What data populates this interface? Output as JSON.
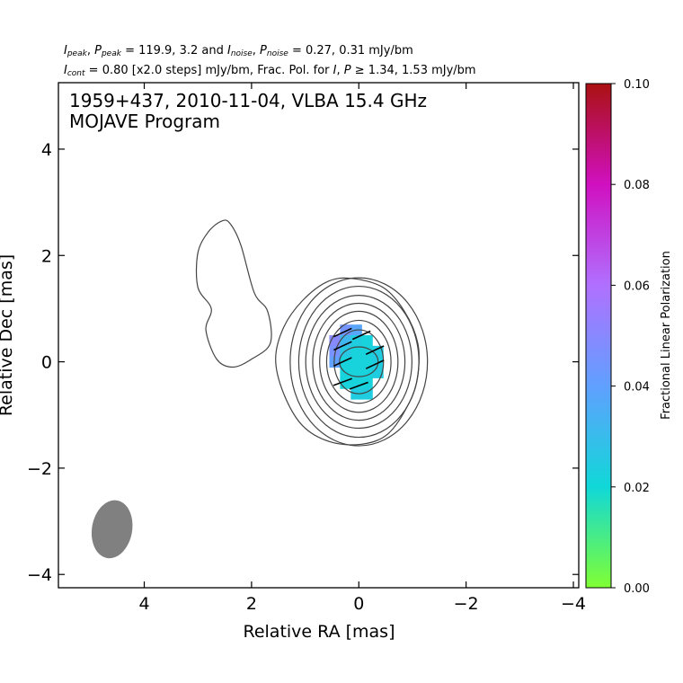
{
  "header": {
    "line1": {
      "i_sym": "I",
      "i_sub": "peak",
      "p_sym": "P",
      "p_sub": "peak",
      "peak_vals": "= 119.9, 3.2 and",
      "in_sym": "I",
      "in_sub": "noise",
      "pn_sym": "P",
      "pn_sub": "noise",
      "noise_vals": "= 0.27, 0.31 mJy/bm"
    },
    "line2": {
      "ic_sym": "I",
      "ic_sub": "cont",
      "cont_text": "= 0.80 [x2.0 steps] mJy/bm, Frac. Pol. for",
      "i_sym": "I",
      "sep": ",",
      "p_sym": "P",
      "thresh_text": "≥ 1.34, 1.53 mJy/bm"
    }
  },
  "plot": {
    "source_line": "1959+437, 2010-11-04, VLBA 15.4 GHz",
    "program_line": "MOJAVE Program"
  },
  "chart_data": {
    "type": "contour",
    "xlabel": "Relative RA [mas]",
    "ylabel": "Relative Dec [mas]",
    "xlim": [
      5.6,
      -4.1
    ],
    "ylim": [
      -4.25,
      5.25
    ],
    "x_ticks": [
      4,
      2,
      0,
      -2,
      -4
    ],
    "x_tick_labels": [
      "4",
      "2",
      "0",
      "−2",
      "−4"
    ],
    "y_ticks": [
      -4,
      -2,
      0,
      2,
      4
    ],
    "y_tick_labels": [
      "−4",
      "−2",
      "0",
      "2",
      "4"
    ],
    "core_contours": [
      {
        "rx": 0.36,
        "ry": 0.28
      },
      {
        "rx": 0.46,
        "ry": 0.6
      },
      {
        "rx": 0.6,
        "ry": 0.78
      },
      {
        "rx": 0.73,
        "ry": 0.95
      },
      {
        "rx": 0.86,
        "ry": 1.1
      },
      {
        "rx": 0.99,
        "ry": 1.25
      },
      {
        "rx": 1.12,
        "ry": 1.42
      },
      {
        "rx": 1.28,
        "ry": 1.58
      }
    ],
    "core_outer_contour": [
      [
        0.15,
        1.57
      ],
      [
        -0.45,
        1.4
      ],
      [
        -0.85,
        0.95
      ],
      [
        -1.1,
        0.35
      ],
      [
        -1.1,
        -0.25
      ],
      [
        -0.95,
        -0.75
      ],
      [
        -0.55,
        -1.35
      ],
      [
        -0.05,
        -1.55
      ],
      [
        0.55,
        -1.5
      ],
      [
        1.05,
        -1.2
      ],
      [
        1.4,
        -0.6
      ],
      [
        1.55,
        0.05
      ],
      [
        1.4,
        0.65
      ],
      [
        1.05,
        1.15
      ],
      [
        0.6,
        1.5
      ]
    ],
    "jet_contour": [
      [
        2.4,
        2.6
      ],
      [
        2.2,
        2.2
      ],
      [
        1.95,
        1.3
      ],
      [
        1.7,
        0.95
      ],
      [
        1.65,
        0.35
      ],
      [
        2.0,
        0.05
      ],
      [
        2.35,
        -0.1
      ],
      [
        2.65,
        0.05
      ],
      [
        2.85,
        0.6
      ],
      [
        2.75,
        1.0
      ],
      [
        3.0,
        1.4
      ],
      [
        3.0,
        2.05
      ],
      [
        2.8,
        2.45
      ],
      [
        2.55,
        2.65
      ]
    ],
    "pol_pixels": [
      {
        "x": 0.25,
        "y": 0.6,
        "frac": 0.045
      },
      {
        "x": 0.05,
        "y": 0.6,
        "frac": 0.038
      },
      {
        "x": 0.45,
        "y": 0.4,
        "frac": 0.05
      },
      {
        "x": 0.25,
        "y": 0.4,
        "frac": 0.032
      },
      {
        "x": 0.05,
        "y": 0.4,
        "frac": 0.024
      },
      {
        "x": -0.15,
        "y": 0.4,
        "frac": 0.022
      },
      {
        "x": 0.45,
        "y": 0.2,
        "frac": 0.046
      },
      {
        "x": 0.25,
        "y": 0.2,
        "frac": 0.026
      },
      {
        "x": 0.05,
        "y": 0.2,
        "frac": 0.022
      },
      {
        "x": -0.15,
        "y": 0.2,
        "frac": 0.022
      },
      {
        "x": -0.35,
        "y": 0.2,
        "frac": 0.024
      },
      {
        "x": 0.45,
        "y": 0.0,
        "frac": 0.04
      },
      {
        "x": 0.25,
        "y": 0.0,
        "frac": 0.022
      },
      {
        "x": 0.05,
        "y": 0.0,
        "frac": 0.022
      },
      {
        "x": -0.15,
        "y": 0.0,
        "frac": 0.022
      },
      {
        "x": -0.35,
        "y": 0.0,
        "frac": 0.024
      },
      {
        "x": 0.25,
        "y": -0.2,
        "frac": 0.022
      },
      {
        "x": 0.05,
        "y": -0.2,
        "frac": 0.022
      },
      {
        "x": -0.15,
        "y": -0.2,
        "frac": 0.022
      },
      {
        "x": -0.35,
        "y": -0.2,
        "frac": 0.024
      },
      {
        "x": 0.25,
        "y": -0.4,
        "frac": 0.022
      },
      {
        "x": 0.05,
        "y": -0.4,
        "frac": 0.022
      },
      {
        "x": -0.15,
        "y": -0.4,
        "frac": 0.022
      },
      {
        "x": 0.05,
        "y": -0.6,
        "frac": 0.024
      },
      {
        "x": -0.15,
        "y": -0.6,
        "frac": 0.024
      }
    ],
    "evpa_ticks": [
      {
        "x": 0.3,
        "y": 0.55,
        "angle": -25
      },
      {
        "x": -0.05,
        "y": 0.5,
        "angle": -25
      },
      {
        "x": 0.3,
        "y": 0.3,
        "angle": -25
      },
      {
        "x": -0.3,
        "y": 0.22,
        "angle": -25
      },
      {
        "x": 0.3,
        "y": 0.0,
        "angle": -25
      },
      {
        "x": -0.3,
        "y": -0.05,
        "angle": -25
      },
      {
        "x": 0.3,
        "y": -0.38,
        "angle": -20
      },
      {
        "x": 0.0,
        "y": -0.45,
        "angle": -20
      }
    ],
    "beam": {
      "x": 4.6,
      "y": -3.15,
      "major": 1.1,
      "minor": 0.75,
      "pa_deg": 10,
      "color": "#808080"
    },
    "contour_color": "#444444",
    "colorbar": {
      "label": "Fractional Linear Polarization",
      "range": [
        0.0,
        0.1
      ],
      "ticks": [
        0.0,
        0.02,
        0.04,
        0.06,
        0.08,
        0.1
      ],
      "tick_labels": [
        "0.00",
        "0.02",
        "0.04",
        "0.06",
        "0.08",
        "0.10"
      ],
      "colors": [
        "#80ff33",
        "#10d8d8",
        "#60a0ff",
        "#b070ff",
        "#d010c0",
        "#aa1111"
      ]
    }
  }
}
